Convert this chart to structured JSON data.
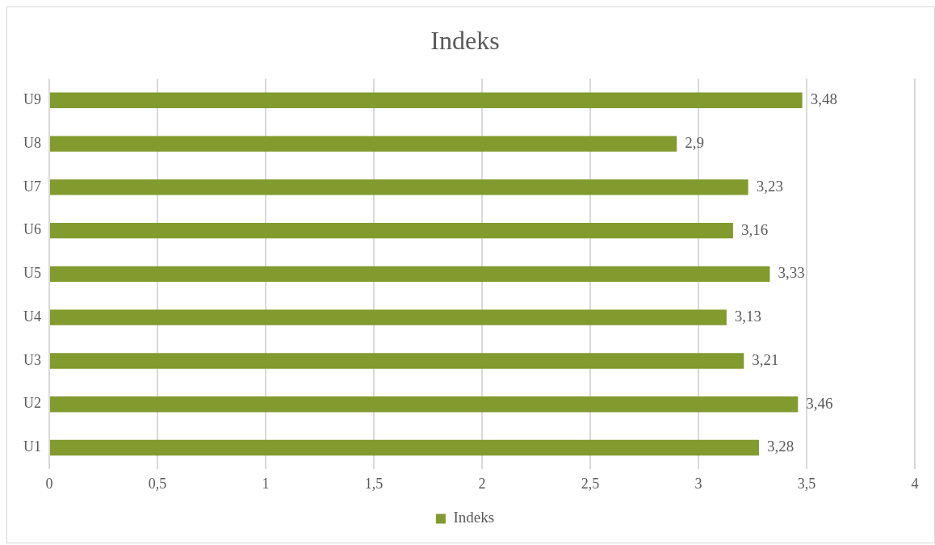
{
  "chart_data": {
    "type": "bar",
    "orientation": "horizontal",
    "title": "Indeks",
    "categories": [
      "U9",
      "U8",
      "U7",
      "U6",
      "U5",
      "U4",
      "U3",
      "U2",
      "U1"
    ],
    "series": [
      {
        "name": "Indeks",
        "color": "#829a2e",
        "values": [
          3.48,
          2.9,
          3.23,
          3.16,
          3.33,
          3.13,
          3.21,
          3.46,
          3.28
        ],
        "value_labels": [
          "3,48",
          "2,9",
          "3,23",
          "3,16",
          "3,33",
          "3,13",
          "3,21",
          "3,46",
          "3,28"
        ]
      }
    ],
    "xlim": [
      0,
      4
    ],
    "xticks": [
      0,
      {
        "value": 0.5,
        "label": "0,5"
      },
      1,
      {
        "value": 1.5,
        "label": "1,5"
      },
      2,
      {
        "value": 2.5,
        "label": "2,5"
      },
      3,
      {
        "value": 3.5,
        "label": "3,5"
      },
      4
    ],
    "grid": "x",
    "legend": "bottom"
  }
}
